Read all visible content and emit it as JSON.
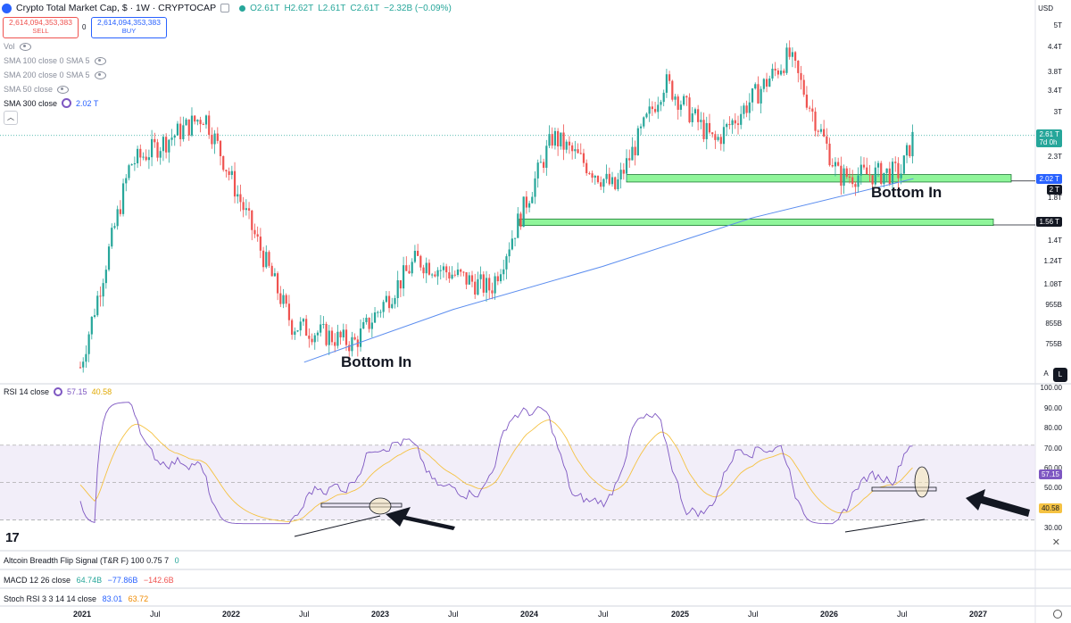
{
  "header": {
    "symbol_title": "Crypto Total Market Cap, $ · 1W · CRYPTOCAP",
    "ohlc": {
      "o": "O2.61T",
      "h": "H2.62T",
      "l": "L2.61T",
      "c": "C2.61T",
      "change": "−2.32B (−0.09%)"
    },
    "currency": "USD"
  },
  "trade": {
    "sell_price": "2,614,094,353,383",
    "sell_label": "SELL",
    "spread": "0",
    "buy_price": "2,614,094,353,383",
    "buy_label": "BUY"
  },
  "indicators": [
    {
      "label": "Vol",
      "value": ""
    },
    {
      "label": "SMA 100 close 0 SMA 5",
      "value": ""
    },
    {
      "label": "SMA 200 close 0 SMA 5",
      "value": ""
    },
    {
      "label": "SMA 50 close",
      "value": ""
    },
    {
      "label": "SMA 300 close",
      "value": "2.02 T"
    }
  ],
  "price_scale": {
    "ticks": [
      "5T",
      "4.4T",
      "3.8T",
      "3.4T",
      "3T",
      "2.3T",
      "1.8T",
      "1.4T",
      "1.24T",
      "1.08T",
      "955B",
      "855B",
      "755B"
    ],
    "tags": {
      "last": "2.61 T",
      "countdown": "7d 0h",
      "sma": "2.02 T",
      "level1": "2 T",
      "level2": "1.56 T"
    },
    "auto_label": "A",
    "log_label": "L"
  },
  "annotations": {
    "bottom_left": "Bottom In",
    "bottom_right": "Bottom In"
  },
  "rsi": {
    "title": "RSI 14 close",
    "value": "57.15",
    "ma_value": "40.58",
    "ticks": [
      "100.00",
      "90.00",
      "80.00",
      "70.00",
      "60.00",
      "50.00",
      "30.00"
    ],
    "tags": {
      "rsi": "57.15",
      "ma": "40.58"
    }
  },
  "panes": [
    {
      "title": "Altcoin Breadth Flip Signal (T&R F) 100 0.75 7",
      "v1": "0",
      "v2": "",
      "v3": ""
    },
    {
      "title": "MACD 12 26 close",
      "v1": "64.74B",
      "v2": "−77.86B",
      "v3": "−142.6B"
    },
    {
      "title": "Stoch RSI 3 3 14 14 close",
      "v1": "83.01",
      "v2": "63.72",
      "v3": ""
    }
  ],
  "time_axis": [
    "2021",
    "Jul",
    "2022",
    "Jul",
    "2023",
    "Jul",
    "2024",
    "Jul",
    "2025",
    "Jul",
    "2026",
    "Jul",
    "2027"
  ],
  "logo": "17",
  "colors": {
    "up": "#26a69a",
    "down": "#ef5350",
    "sma": "#5b8def",
    "zone": "#8ff59a",
    "rsi": "#7e57c2",
    "rsi_ma": "#f5c242",
    "accent": "#2962ff"
  },
  "chart_data": {
    "type": "candlestick",
    "title": "Crypto Total Market Cap, $ · 1W · CRYPTOCAP",
    "scale": "log",
    "ylim": [
      0.66,
      5.3
    ],
    "y_unit": "T",
    "x_start": "2021",
    "x_end": "2027",
    "key_points": [
      {
        "x": "2021-01",
        "y": 0.66
      },
      {
        "x": "2021-05",
        "y": 2.2
      },
      {
        "x": "2021-11",
        "y": 2.95
      },
      {
        "x": "2022-06",
        "y": 0.85
      },
      {
        "x": "2022-11",
        "y": 0.76
      },
      {
        "x": "2023-04",
        "y": 1.25
      },
      {
        "x": "2023-10",
        "y": 1.05
      },
      {
        "x": "2024-03",
        "y": 2.6
      },
      {
        "x": "2024-08",
        "y": 1.9
      },
      {
        "x": "2024-12",
        "y": 3.6
      },
      {
        "x": "2025-04",
        "y": 2.5
      },
      {
        "x": "2025-10",
        "y": 4.2
      },
      {
        "x": "2026-02",
        "y": 2.05
      },
      {
        "x": "2026-07",
        "y": 2.1
      },
      {
        "x": "2026-08",
        "y": 2.61
      }
    ],
    "sma300": [
      {
        "x": "2022-07",
        "y": 0.68
      },
      {
        "x": "2023-07",
        "y": 0.93
      },
      {
        "x": "2024-07",
        "y": 1.2
      },
      {
        "x": "2025-07",
        "y": 1.6
      },
      {
        "x": "2026-08",
        "y": 2.02
      }
    ],
    "zones": [
      {
        "from": 1.98,
        "to": 2.07
      },
      {
        "from": 1.53,
        "to": 1.59
      }
    ],
    "rsi_series": {
      "ylim": [
        25,
        100
      ],
      "levels": [
        70,
        50,
        30
      ]
    }
  }
}
